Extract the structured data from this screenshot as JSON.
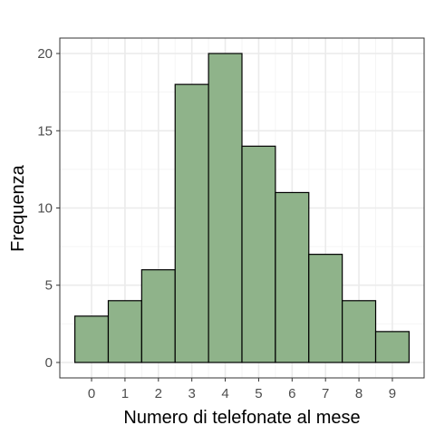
{
  "chart_data": {
    "type": "bar",
    "title": "",
    "xlabel": "Numero di telefonate al mese",
    "ylabel": "Frequenza",
    "categories": [
      "0",
      "1",
      "2",
      "3",
      "4",
      "5",
      "6",
      "7",
      "8",
      "9"
    ],
    "values": [
      3,
      4,
      6,
      18,
      20,
      14,
      11,
      7,
      4,
      2
    ],
    "xlim": [
      -0.95,
      9.95
    ],
    "ylim": [
      -1,
      21
    ],
    "yticks": [
      0,
      5,
      10,
      15,
      20
    ],
    "grid": true,
    "legend": "none",
    "colors": {
      "bar_fill": "#8fb38a",
      "bar_stroke": "#000000",
      "grid_major": "#ebebeb",
      "grid_minor": "#f5f5f5",
      "panel_border": "#333333"
    }
  }
}
